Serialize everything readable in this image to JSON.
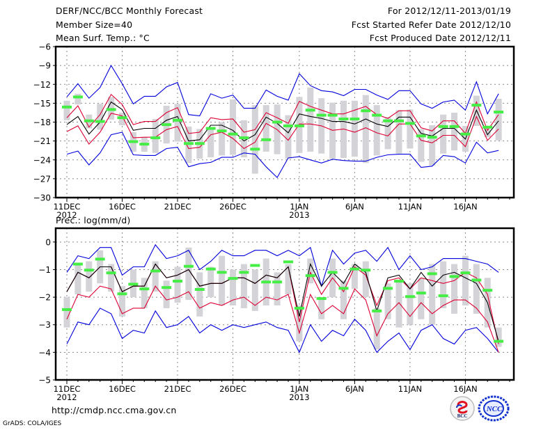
{
  "header": {
    "title": "DERF/NCC/BCC Monthly Forecast",
    "member_size": "Member Size=40",
    "top_variable": "Mean Surf. Temp.: °C",
    "period": "For 2012/12/11-2013/01/19",
    "fcst_started": "Fcst Started Refer Date 2012/12/10",
    "fcst_produced": "Fcst Produced Date 2012/12/11"
  },
  "footer": {
    "url": "http://cmdp.ncc.cma.gov.cn",
    "credit": "GrADS: COLA/IGES",
    "logo_bcc": "BCC",
    "logo_ncc": "NCC"
  },
  "colors": {
    "envelope": "#0000dd",
    "inner_band": "#dd0033",
    "mean": "#000000",
    "box": "#d3d3d8",
    "marker": "#44ee44",
    "grid": "#888888"
  },
  "chart_data": [
    {
      "type": "line",
      "id": "temperature",
      "title": "Mean Surf. Temp.: °C",
      "ylabel": "°C",
      "ylim": [
        -30,
        -6
      ],
      "yticks": [
        -6,
        -9,
        -12,
        -15,
        -18,
        -21,
        -24,
        -27,
        -30
      ],
      "xtick_labels": [
        "11DEC",
        "16DEC",
        "21DEC",
        "26DEC",
        "1JAN",
        "6JAN",
        "11JAN",
        "16JAN"
      ],
      "xtick_days": [
        0,
        5,
        10,
        15,
        21,
        26,
        31,
        36
      ],
      "year_labels": [
        {
          "day": 0,
          "text": "2012"
        },
        {
          "day": 21,
          "text": "2013"
        }
      ],
      "grid": true,
      "n_days": 40,
      "series": [
        {
          "name": "max",
          "values": [
            -14.0,
            -11.9,
            -14.2,
            -12.5,
            -9.0,
            -11.9,
            -15.1,
            -13.9,
            -13.9,
            -12.4,
            -11.7,
            -16.8,
            -17.0,
            -13.5,
            -14.2,
            -13.7,
            -15.8,
            -15.8,
            -12.9,
            -13.9,
            -14.5,
            -10.3,
            -12.2,
            -13.0,
            -13.2,
            -13.8,
            -12.8,
            -12.8,
            -13.7,
            -14.4,
            -13.0,
            -13.0,
            -15.1,
            -15.8,
            -14.8,
            -14.5,
            -16.1,
            -11.6,
            -16.7,
            -13.5
          ]
        },
        {
          "name": "upper",
          "values": [
            -17.3,
            -15.4,
            -18.8,
            -16.8,
            -13.6,
            -15.2,
            -18.4,
            -17.9,
            -17.9,
            -16.5,
            -15.7,
            -19.8,
            -19.6,
            -17.3,
            -17.6,
            -17.5,
            -19.6,
            -19.2,
            -16.5,
            -17.3,
            -18.2,
            -14.7,
            -15.5,
            -16.1,
            -16.7,
            -16.7,
            -16.1,
            -15.5,
            -16.8,
            -17.4,
            -16.2,
            -16.2,
            -18.9,
            -19.4,
            -17.8,
            -17.8,
            -19.8,
            -14.8,
            -19.3,
            -16.8
          ]
        },
        {
          "name": "mean",
          "values": [
            -18.4,
            -17.1,
            -19.9,
            -18.0,
            -14.8,
            -16.0,
            -19.3,
            -19.0,
            -19.0,
            -17.7,
            -17.1,
            -21.0,
            -20.8,
            -18.5,
            -18.5,
            -19.3,
            -21.0,
            -20.0,
            -17.2,
            -18.2,
            -19.7,
            -16.7,
            -17.1,
            -17.4,
            -17.9,
            -17.9,
            -18.3,
            -17.5,
            -18.3,
            -18.7,
            -17.2,
            -17.2,
            -19.8,
            -20.2,
            -19.0,
            -19.0,
            -20.7,
            -16.1,
            -20.0,
            -17.8
          ]
        },
        {
          "name": "lower",
          "values": [
            -19.5,
            -18.6,
            -21.5,
            -19.6,
            -16.6,
            -17.0,
            -20.5,
            -20.4,
            -20.4,
            -19.2,
            -18.7,
            -22.2,
            -22.0,
            -20.0,
            -19.6,
            -20.6,
            -22.2,
            -21.2,
            -18.2,
            -19.2,
            -20.9,
            -18.3,
            -18.3,
            -18.6,
            -19.3,
            -19.1,
            -19.6,
            -18.9,
            -19.7,
            -20.2,
            -18.3,
            -18.3,
            -20.9,
            -21.3,
            -20.1,
            -20.1,
            -21.9,
            -17.1,
            -20.9,
            -19.1
          ]
        },
        {
          "name": "min",
          "values": [
            -23.1,
            -22.6,
            -24.8,
            -22.9,
            -20.0,
            -19.6,
            -23.2,
            -23.3,
            -23.3,
            -22.2,
            -22.0,
            -25.1,
            -24.6,
            -24.4,
            -23.6,
            -23.6,
            -22.9,
            -23.1,
            -25.1,
            -26.8,
            -23.7,
            -23.5,
            -24.0,
            -24.5,
            -23.9,
            -24.1,
            -24.2,
            -24.2,
            -23.6,
            -23.2,
            -23.1,
            -23.1,
            -25.2,
            -25.0,
            -23.3,
            -23.5,
            -24.5,
            -21.2,
            -22.9,
            -22.5
          ]
        },
        {
          "name": "member_box_top",
          "values": [
            -14.6,
            -13.5,
            -16.8,
            -15.1,
            -14.0,
            -16.5,
            -19.6,
            -20.4,
            -17.5,
            -15.4,
            -15.1,
            -18.7,
            -19.1,
            -18.8,
            -18.0,
            -14.4,
            -17.7,
            -15.3,
            -15.3,
            -15.2,
            -16.9,
            -14.0,
            -12.5,
            -14.2,
            -14.9,
            -14.6,
            -14.6,
            -13.7,
            -15.3,
            -17.2,
            -16.1,
            -16.0,
            -19.1,
            -18.5,
            -16.8,
            -16.5,
            -18.6,
            -13.8,
            -19.1,
            -14.3
          ]
        },
        {
          "name": "member_box_bottom",
          "values": [
            -17.7,
            -15.2,
            -19.0,
            -19.2,
            -17.6,
            -18.5,
            -22.7,
            -22.7,
            -22.9,
            -21.4,
            -21.1,
            -24.5,
            -23.8,
            -23.6,
            -23.3,
            -23.2,
            -23.6,
            -26.2,
            -22.7,
            -23.1,
            -23.8,
            -22.9,
            -22.7,
            -23.0,
            -23.8,
            -23.7,
            -23.5,
            -24.5,
            -23.3,
            -22.3,
            -23.0,
            -22.2,
            -24.3,
            -24.9,
            -23.0,
            -22.5,
            -22.7,
            -18.6,
            -20.4,
            -20.9
          ]
        },
        {
          "name": "obs_marker",
          "values": [
            -15.6,
            -14.0,
            -17.8,
            -17.9,
            -16.0,
            -17.3,
            -21.1,
            -21.5,
            -20.5,
            -18.4,
            -17.7,
            -21.4,
            -21.4,
            -19.0,
            -19.4,
            -19.9,
            -20.5,
            -22.3,
            -20.8,
            -18.0,
            -18.6,
            -18.6,
            -16.1,
            -16.9,
            -16.9,
            -17.5,
            -17.5,
            -16.2,
            -16.9,
            -17.8,
            -17.8,
            -18.2,
            -20.2,
            -20.4,
            -18.7,
            -18.7,
            -19.9,
            -15.3,
            -18.8,
            -16.4
          ]
        }
      ]
    },
    {
      "type": "line",
      "id": "precipitation",
      "title": "Prec.: log(mm/d)",
      "ylabel": "log(mm/d)",
      "ylim": [
        -5,
        0.5
      ],
      "yticks": [
        0,
        -1,
        -2,
        -3,
        -4,
        -5
      ],
      "xtick_labels": [
        "11DEC",
        "16DEC",
        "21DEC",
        "26DEC",
        "1JAN",
        "6JAN",
        "11JAN",
        "16JAN"
      ],
      "xtick_days": [
        0,
        5,
        10,
        15,
        21,
        26,
        31,
        36
      ],
      "year_labels": [
        {
          "day": 0,
          "text": "2012"
        },
        {
          "day": 21,
          "text": "2013"
        }
      ],
      "grid": true,
      "n_days": 40,
      "series": [
        {
          "name": "max",
          "values": [
            -1.1,
            -0.5,
            -0.6,
            -0.2,
            -0.2,
            -1.2,
            -0.9,
            -0.9,
            -0.1,
            -0.6,
            -0.5,
            -0.3,
            -1.0,
            -0.7,
            -0.3,
            -0.5,
            -0.5,
            -0.3,
            -0.3,
            -0.5,
            -0.3,
            -0.5,
            -0.2,
            -1.6,
            -0.3,
            -0.8,
            -0.4,
            -0.3,
            -0.7,
            -0.2,
            -1.0,
            -0.5,
            -1.0,
            -0.9,
            -0.6,
            -0.6,
            -0.6,
            -0.7,
            -0.8,
            -1.1
          ]
        },
        {
          "name": "upper",
          "values": [
            -1.8,
            -1.1,
            -1.3,
            -0.9,
            -0.9,
            -1.8,
            -1.6,
            -1.6,
            -0.8,
            -1.3,
            -1.2,
            -1.0,
            -1.6,
            -1.5,
            -1.5,
            -1.3,
            -1.3,
            -1.5,
            -1.2,
            -1.3,
            -0.9,
            -2.9,
            -1.1,
            -1.9,
            -1.3,
            -1.8,
            -0.9,
            -1.2,
            -2.3,
            -1.4,
            -1.3,
            -1.7,
            -1.3,
            -1.4,
            -1.5,
            -1.4,
            -1.1,
            -1.3,
            -1.9,
            -3.7
          ]
        },
        {
          "name": "mean",
          "values": [
            -1.8,
            -1.1,
            -1.3,
            -0.9,
            -0.9,
            -1.8,
            -1.6,
            -1.6,
            -0.8,
            -1.3,
            -1.2,
            -1.0,
            -1.6,
            -1.5,
            -1.5,
            -1.3,
            -1.3,
            -1.5,
            -1.2,
            -1.3,
            -0.9,
            -2.7,
            -0.8,
            -1.6,
            -1.1,
            -1.5,
            -0.8,
            -1.1,
            -2.5,
            -1.3,
            -1.2,
            -1.7,
            -1.1,
            -1.6,
            -1.2,
            -1.1,
            -1.3,
            -1.5,
            -2.2,
            -3.6
          ]
        },
        {
          "name": "lower",
          "values": [
            -2.8,
            -1.9,
            -2.0,
            -1.6,
            -1.7,
            -2.6,
            -2.4,
            -2.4,
            -1.6,
            -2.1,
            -2.0,
            -1.8,
            -2.4,
            -2.2,
            -2.3,
            -2.1,
            -2.0,
            -2.3,
            -2.0,
            -2.1,
            -1.9,
            -3.3,
            -1.9,
            -2.6,
            -2.3,
            -2.6,
            -1.7,
            -2.1,
            -3.4,
            -2.6,
            -2.2,
            -2.7,
            -2.2,
            -2.6,
            -2.3,
            -2.1,
            -2.1,
            -2.4,
            -2.9,
            -4.0
          ]
        },
        {
          "name": "min",
          "values": [
            -3.7,
            -2.9,
            -3.0,
            -2.4,
            -2.6,
            -3.5,
            -3.2,
            -3.3,
            -2.5,
            -3.1,
            -3.0,
            -2.7,
            -3.3,
            -3.0,
            -3.2,
            -3.0,
            -3.1,
            -3.0,
            -2.9,
            -3.1,
            -3.2,
            -4.0,
            -3.0,
            -3.6,
            -3.2,
            -3.4,
            -2.8,
            -3.2,
            -4.0,
            -3.6,
            -3.3,
            -3.9,
            -3.2,
            -3.0,
            -3.5,
            -3.7,
            -3.2,
            -3.1,
            -3.5,
            -4.0
          ]
        },
        {
          "name": "member_box_top",
          "values": [
            -2.0,
            -0.8,
            -0.7,
            -0.3,
            -0.8,
            -1.6,
            -1.0,
            -1.3,
            -0.7,
            -1.4,
            -0.9,
            -0.2,
            -1.1,
            -0.9,
            -0.5,
            -1.0,
            -0.8,
            -1.0,
            -0.6,
            -1.1,
            -0.8,
            -2.3,
            -0.6,
            -2.1,
            -0.6,
            -1.4,
            -0.8,
            -0.7,
            -2.4,
            -1.5,
            -1.4,
            -1.5,
            -1.3,
            -0.8,
            -0.7,
            -0.8,
            -0.5,
            -0.8,
            -1.3,
            -3.1
          ]
        },
        {
          "name": "member_box_bottom",
          "values": [
            -3.1,
            -1.9,
            -1.8,
            -1.5,
            -1.8,
            -2.7,
            -2.0,
            -2.4,
            -1.8,
            -2.4,
            -2.2,
            -2.1,
            -2.7,
            -2.0,
            -2.3,
            -2.3,
            -2.4,
            -2.5,
            -2.3,
            -2.3,
            -1.9,
            -3.6,
            -1.5,
            -2.8,
            -2.0,
            -2.8,
            -1.7,
            -2.0,
            -3.9,
            -2.8,
            -3.1,
            -3.0,
            -2.8,
            -3.0,
            -2.4,
            -2.6,
            -2.3,
            -2.6,
            -3.1,
            -3.8
          ]
        },
        {
          "name": "obs_marker",
          "values": [
            -2.45,
            -0.8,
            -1.02,
            -0.62,
            -1.12,
            -1.88,
            -1.53,
            -1.7,
            -1.05,
            -1.65,
            -1.42,
            -0.88,
            -1.72,
            -0.98,
            -1.1,
            -1.32,
            -1.1,
            -0.85,
            -1.45,
            -1.45,
            -0.72,
            -2.4,
            -1.22,
            -2.05,
            -1.1,
            -1.68,
            -0.98,
            -1.02,
            -2.5,
            -1.68,
            -1.42,
            -1.98,
            -1.85,
            -1.15,
            -1.95,
            -1.25,
            -1.12,
            -1.38,
            -1.75,
            -3.6
          ]
        }
      ]
    }
  ]
}
